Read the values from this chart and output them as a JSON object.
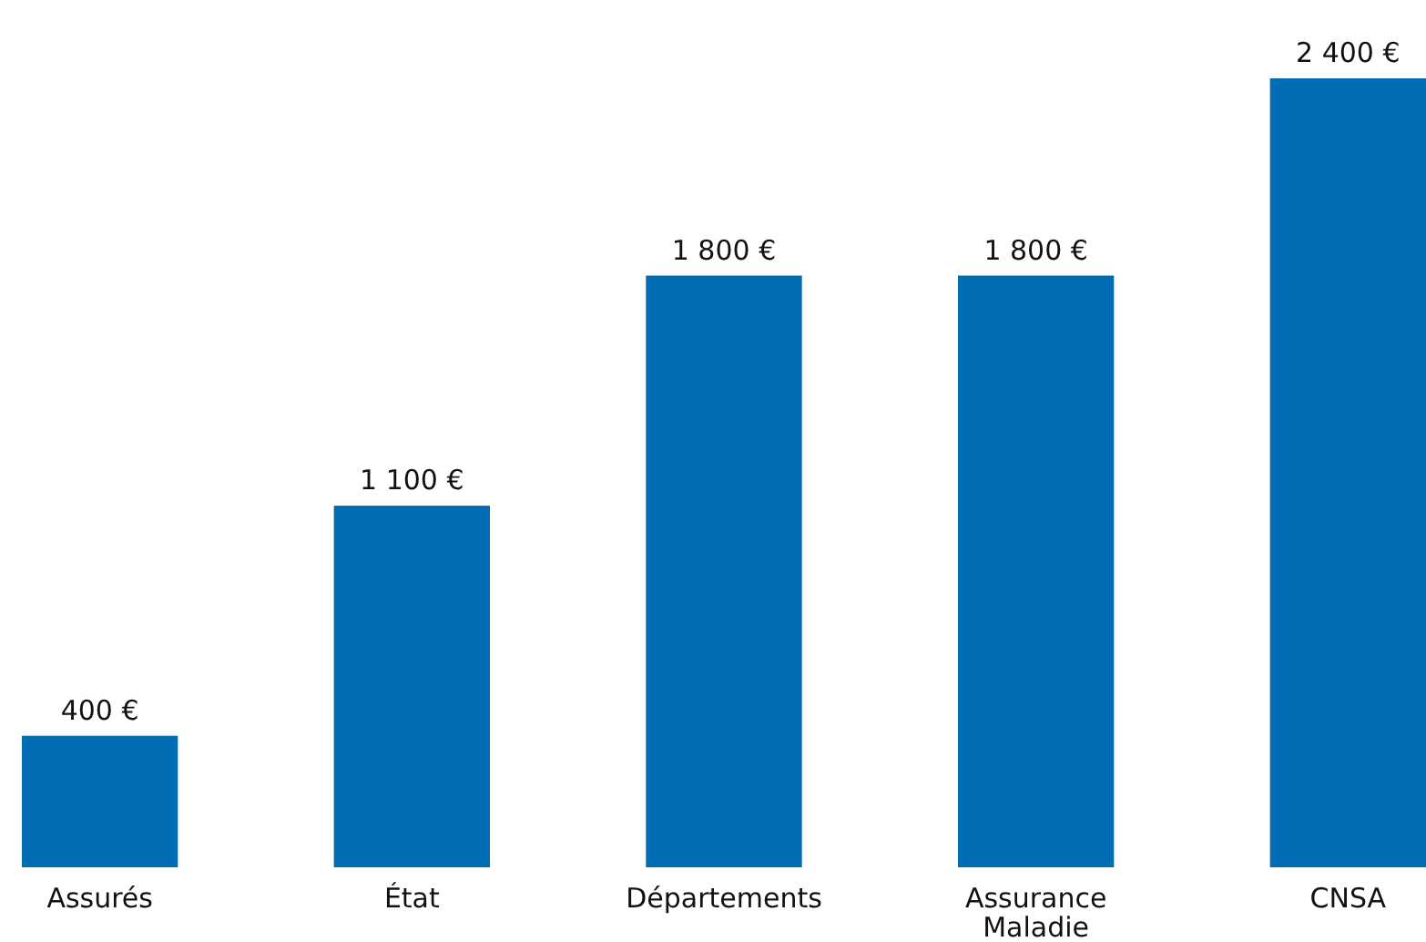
{
  "chart_data": {
    "type": "bar",
    "categories": [
      "Assurés",
      "État",
      "Départements",
      "Assurance Maladie",
      "CNSA"
    ],
    "values": [
      400,
      1100,
      1800,
      1800,
      2400
    ],
    "color": "#006cb4",
    "value_labels": [
      "400 €",
      "1 100 €",
      "1 800 €",
      "1 800 €",
      "2 400 €"
    ]
  }
}
